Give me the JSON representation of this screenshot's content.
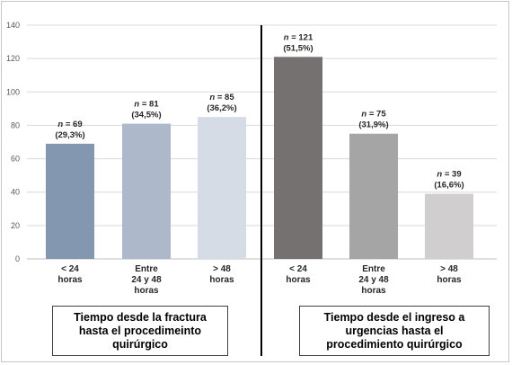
{
  "chart_data": {
    "type": "bar",
    "ylim": [
      0,
      140
    ],
    "yticks": [
      "0",
      "20",
      "40",
      "60",
      "80",
      "100",
      "120",
      "140"
    ],
    "grid": true,
    "groups": [
      {
        "caption_lines": [
          "Tiempo desde la fractura",
          "hasta el procedimeinto",
          "quirúrgico"
        ],
        "bars": [
          {
            "category_lines": [
              "< 24",
              "horas"
            ],
            "value": 69,
            "label_n": "n",
            "label_value": "= 69",
            "label_pct": "(29,3%)",
            "color": "#8497b0"
          },
          {
            "category_lines": [
              "Entre",
              "24 y 48",
              "horas"
            ],
            "value": 81,
            "label_n": "n",
            "label_value": "= 81",
            "label_pct": "(34,5%)",
            "color": "#adb9ca"
          },
          {
            "category_lines": [
              "> 48",
              "horas"
            ],
            "value": 85,
            "label_n": "n",
            "label_value": "= 85",
            "label_pct": "(36,2%)",
            "color": "#d6dce5"
          }
        ]
      },
      {
        "caption_lines": [
          "Tiempo desde el ingreso a",
          "urgencias hasta el",
          "procedimiento quirúrgico"
        ],
        "bars": [
          {
            "category_lines": [
              "< 24",
              "horas"
            ],
            "value": 121,
            "label_n": "n",
            "label_value": "= 121",
            "label_pct": "(51,5%)",
            "color": "#767171"
          },
          {
            "category_lines": [
              "Entre",
              "24 y 48",
              "horas"
            ],
            "value": 75,
            "label_n": "n",
            "label_value": "= 75",
            "label_pct": "(31,9%)",
            "color": "#a5a5a5"
          },
          {
            "category_lines": [
              "> 48",
              "horas"
            ],
            "value": 39,
            "label_n": "n",
            "label_value": "= 39",
            "label_pct": "(16,6%)",
            "color": "#d0cece"
          }
        ]
      }
    ]
  }
}
